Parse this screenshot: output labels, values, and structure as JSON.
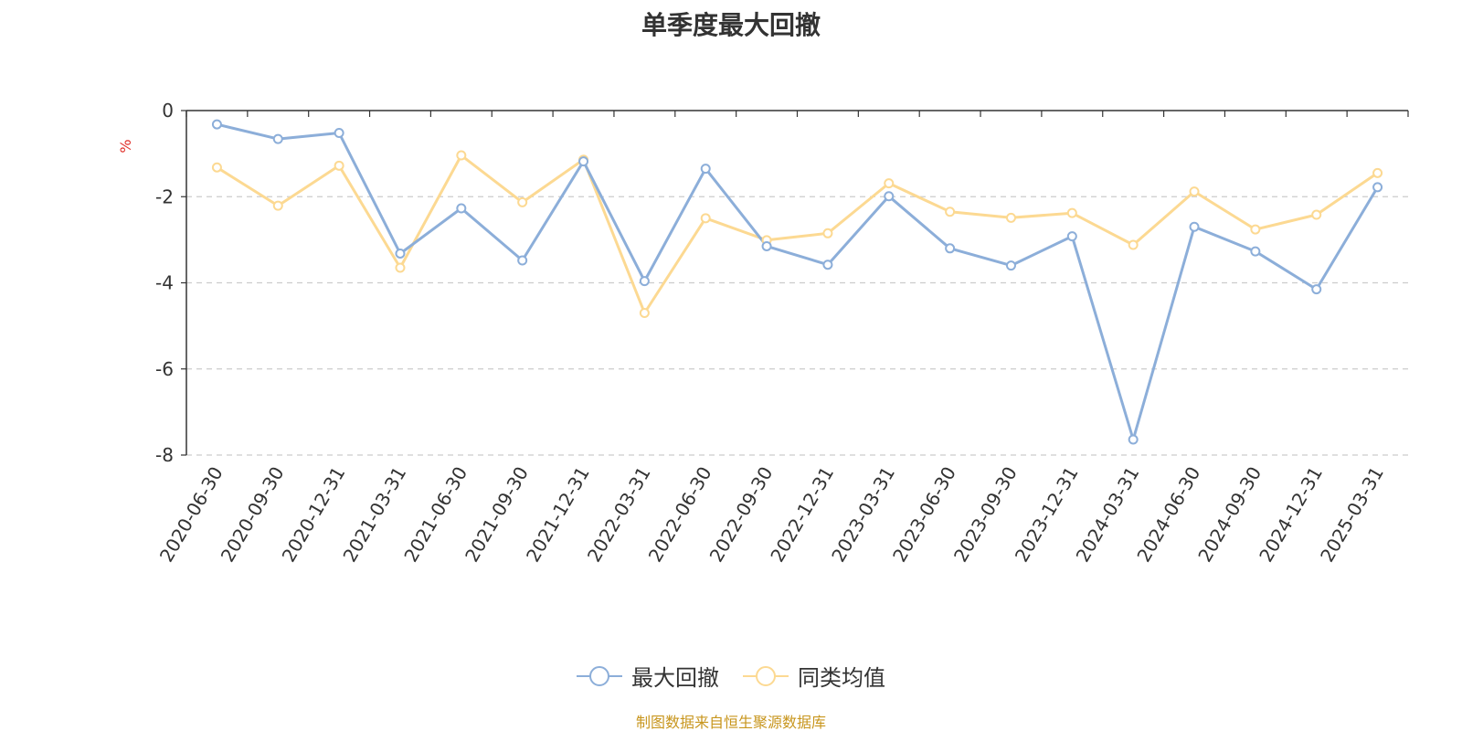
{
  "title": "单季度最大回撤",
  "source_note": "制图数据来自恒生聚源数据库",
  "colors": {
    "series1": "#8caed9",
    "series2": "#fcd992",
    "axis": "#333333",
    "grid": "#cccccc",
    "unit": "#e0302a",
    "note": "#c8961e"
  },
  "chart_data": {
    "type": "line",
    "title": "单季度最大回撤",
    "ylabel": "%",
    "xlabel": "",
    "ylim": [
      -8,
      0
    ],
    "yticks": [
      0,
      -2,
      -4,
      -6,
      -8
    ],
    "grid": true,
    "legend_position": "bottom",
    "categories": [
      "2020-06-30",
      "2020-09-30",
      "2020-12-31",
      "2021-03-31",
      "2021-06-30",
      "2021-09-30",
      "2021-12-31",
      "2022-03-31",
      "2022-06-30",
      "2022-09-30",
      "2022-12-31",
      "2023-03-31",
      "2023-06-30",
      "2023-09-30",
      "2023-12-31",
      "2024-03-31",
      "2024-06-30",
      "2024-09-30",
      "2024-12-31",
      "2025-03-31"
    ],
    "series": [
      {
        "name": "最大回撤",
        "values": [
          -0.32,
          -0.66,
          -0.52,
          -3.32,
          -2.27,
          -3.48,
          -1.18,
          -3.96,
          -1.35,
          -3.15,
          -3.58,
          -1.99,
          -3.2,
          -3.6,
          -2.92,
          -7.64,
          -2.7,
          -3.27,
          -4.15,
          -1.78
        ]
      },
      {
        "name": "同类均值",
        "values": [
          -1.32,
          -2.21,
          -1.28,
          -3.65,
          -1.04,
          -2.13,
          -1.14,
          -4.7,
          -2.5,
          -3.01,
          -2.85,
          -1.69,
          -2.35,
          -2.49,
          -2.38,
          -3.12,
          -1.88,
          -2.76,
          -2.42,
          -1.45
        ]
      }
    ]
  }
}
